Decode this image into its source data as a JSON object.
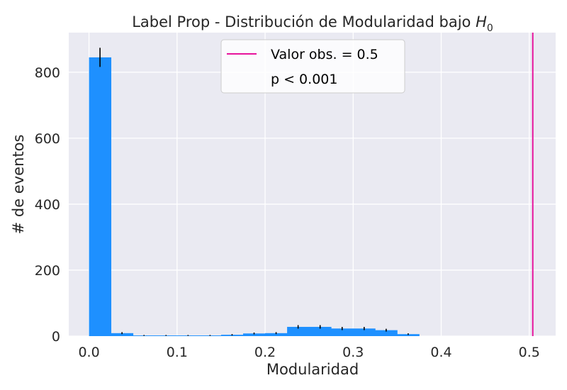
{
  "chart_data": {
    "type": "bar",
    "title": "Label Prop - Distribución de Modularidad bajo ",
    "title_math": "H",
    "title_sub": "0",
    "xlabel": "Modularidad",
    "ylabel": "# de eventos",
    "xlim": [
      -0.023,
      0.53
    ],
    "ylim": [
      0,
      920
    ],
    "grid": true,
    "x_ticks": [
      "0.0",
      "0.1",
      "0.2",
      "0.3",
      "0.4",
      "0.5"
    ],
    "x_tick_values": [
      0.0,
      0.1,
      0.2,
      0.3,
      0.4,
      0.5
    ],
    "y_ticks": [
      "0",
      "200",
      "400",
      "600",
      "800"
    ],
    "y_tick_values": [
      0,
      200,
      400,
      600,
      800
    ],
    "bar_color": "#1e90ff",
    "observed_line_color": "#e7139c",
    "bins": [
      {
        "x0": 0.0,
        "x1": 0.025,
        "value": 845,
        "err": 29
      },
      {
        "x0": 0.025,
        "x1": 0.05,
        "value": 9,
        "err": 3
      },
      {
        "x0": 0.05,
        "x1": 0.075,
        "value": 2,
        "err": 1.4
      },
      {
        "x0": 0.075,
        "x1": 0.1,
        "value": 2,
        "err": 1.4
      },
      {
        "x0": 0.1,
        "x1": 0.125,
        "value": 2,
        "err": 1.4
      },
      {
        "x0": 0.125,
        "x1": 0.15,
        "value": 2,
        "err": 1.4
      },
      {
        "x0": 0.15,
        "x1": 0.175,
        "value": 4,
        "err": 2
      },
      {
        "x0": 0.175,
        "x1": 0.2,
        "value": 8,
        "err": 2.8
      },
      {
        "x0": 0.2,
        "x1": 0.225,
        "value": 9,
        "err": 3
      },
      {
        "x0": 0.225,
        "x1": 0.25,
        "value": 28,
        "err": 5.3
      },
      {
        "x0": 0.25,
        "x1": 0.275,
        "value": 28,
        "err": 5.3
      },
      {
        "x0": 0.275,
        "x1": 0.3,
        "value": 23,
        "err": 4.8
      },
      {
        "x0": 0.3,
        "x1": 0.325,
        "value": 23,
        "err": 4.8
      },
      {
        "x0": 0.325,
        "x1": 0.35,
        "value": 18,
        "err": 4.2
      },
      {
        "x0": 0.35,
        "x1": 0.375,
        "value": 6,
        "err": 2.4
      }
    ],
    "observed_value": 0.504,
    "legend": {
      "placement": "top-center",
      "entries": [
        "Valor obs. = 0.5",
        "p < 0.001"
      ]
    }
  }
}
